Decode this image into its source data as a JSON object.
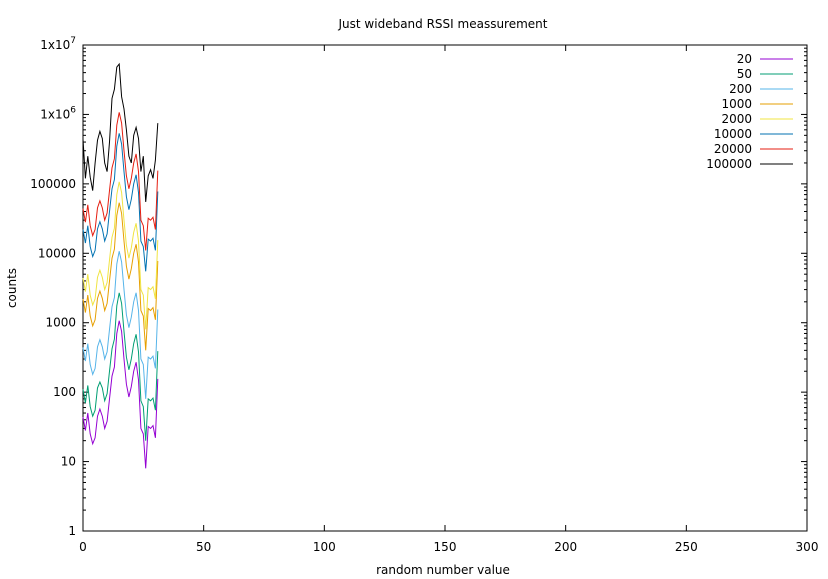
{
  "chart_data": {
    "type": "line",
    "title": "Just wideband RSSI meassurement",
    "xlabel": "random number value",
    "ylabel": "counts",
    "xlim": [
      0,
      300
    ],
    "ylim": [
      1,
      10000000
    ],
    "yscale": "log",
    "grid": false,
    "legend": "top-right",
    "xticks": [
      "0",
      "50",
      "100",
      "150",
      "200",
      "250",
      "300"
    ],
    "yticks": [
      {
        "value": 1,
        "mantissa": "1",
        "exp": ""
      },
      {
        "value": 10,
        "mantissa": "10",
        "exp": ""
      },
      {
        "value": 100,
        "mantissa": "100",
        "exp": ""
      },
      {
        "value": 1000,
        "mantissa": "1000",
        "exp": ""
      },
      {
        "value": 10000,
        "mantissa": "10000",
        "exp": ""
      },
      {
        "value": 100000,
        "mantissa": "100000",
        "exp": ""
      },
      {
        "value": 1000000,
        "mantissa": "1x10",
        "exp": "6"
      },
      {
        "value": 10000000,
        "mantissa": "1x10",
        "exp": "7"
      }
    ],
    "x": [
      0,
      1,
      2,
      3,
      4,
      5,
      6,
      7,
      8,
      9,
      10,
      11,
      12,
      13,
      14,
      15,
      16,
      17,
      18,
      19,
      20,
      21,
      22,
      23,
      24,
      25,
      26,
      27,
      28,
      29,
      30,
      31
    ],
    "series": [
      {
        "name": "20",
        "color": "#9400d3",
        "values": [
          44,
          28,
          50,
          25,
          18,
          22,
          45,
          57,
          45,
          30,
          38,
          80,
          170,
          230,
          700,
          1070,
          750,
          300,
          130,
          85,
          120,
          200,
          270,
          150,
          30,
          25,
          8,
          32,
          30,
          33,
          22,
          155
        ]
      },
      {
        "name": "50",
        "color": "#009e73",
        "values": [
          110,
          70,
          125,
          62,
          45,
          55,
          115,
          140,
          115,
          75,
          95,
          200,
          420,
          580,
          1750,
          2700,
          1900,
          750,
          320,
          210,
          300,
          500,
          680,
          380,
          75,
          62,
          20,
          80,
          75,
          82,
          55,
          390
        ]
      },
      {
        "name": "200",
        "color": "#56b4e9",
        "values": [
          440,
          280,
          500,
          250,
          180,
          220,
          450,
          570,
          450,
          300,
          380,
          800,
          1700,
          2300,
          7000,
          10700,
          7500,
          3000,
          1300,
          850,
          1200,
          2000,
          2700,
          1500,
          300,
          250,
          80,
          320,
          300,
          330,
          220,
          1550
        ]
      },
      {
        "name": "1000",
        "color": "#e69f00",
        "values": [
          2200,
          1400,
          2500,
          1250,
          900,
          1100,
          2250,
          2850,
          2250,
          1500,
          1900,
          4000,
          8500,
          11500,
          35000,
          53500,
          37500,
          15000,
          6500,
          4250,
          6000,
          10000,
          13500,
          7500,
          1500,
          1250,
          400,
          1600,
          1500,
          1650,
          1100,
          7750
        ]
      },
      {
        "name": "2000",
        "color": "#f0e442",
        "values": [
          4400,
          2800,
          5000,
          2500,
          1800,
          2200,
          4500,
          5700,
          4500,
          3000,
          3800,
          8000,
          17000,
          23000,
          70000,
          107000,
          75000,
          30000,
          13000,
          8500,
          12000,
          20000,
          27000,
          15000,
          3000,
          2500,
          800,
          3200,
          3000,
          3300,
          2200,
          15500
        ]
      },
      {
        "name": "10000",
        "color": "#0072b2",
        "values": [
          22000,
          14000,
          25000,
          12500,
          9000,
          11000,
          22500,
          28500,
          22500,
          15000,
          19000,
          40000,
          85000,
          115000,
          350000,
          535000,
          375000,
          150000,
          65000,
          42500,
          60000,
          100000,
          135000,
          75000,
          15000,
          12500,
          5500,
          16000,
          15000,
          16500,
          11000,
          77500
        ]
      },
      {
        "name": "20000",
        "color": "#e51e10",
        "values": [
          44000,
          28000,
          50000,
          25000,
          18000,
          22000,
          45000,
          57000,
          45000,
          30000,
          38000,
          80000,
          170000,
          230000,
          700000,
          1070000,
          750000,
          300000,
          130000,
          85000,
          120000,
          200000,
          270000,
          150000,
          30000,
          25000,
          11000,
          32000,
          30000,
          33000,
          22000,
          155000
        ]
      },
      {
        "name": "100000",
        "color": "#000000",
        "values": [
          440000,
          120000,
          250000,
          125000,
          80000,
          200000,
          425000,
          570000,
          450000,
          200000,
          150000,
          400000,
          1700000,
          2300000,
          4800000,
          5300000,
          1800000,
          1200000,
          600000,
          250000,
          200000,
          500000,
          650000,
          450000,
          150000,
          250000,
          55000,
          130000,
          160000,
          120000,
          220000,
          750000
        ]
      }
    ]
  }
}
